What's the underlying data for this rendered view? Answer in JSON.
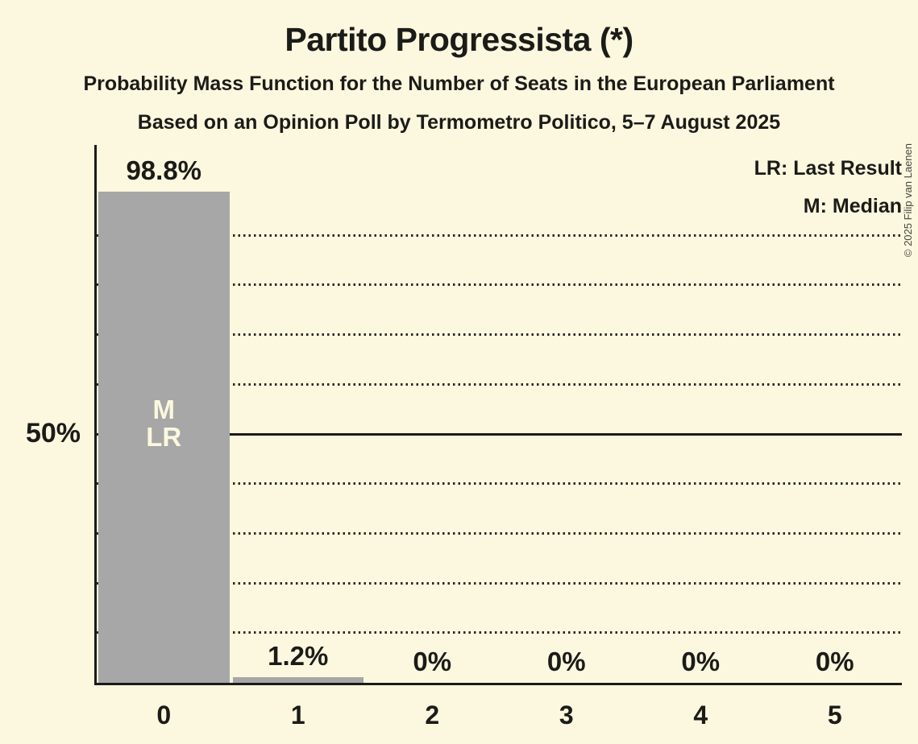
{
  "title": "Partito Progressista (*)",
  "subtitle": {
    "line1": "Probability Mass Function for the Number of Seats in the European Parliament",
    "line2": "Based on an Opinion Poll by Termometro Politico, 5–7 August 2025"
  },
  "legend": {
    "last_result": "LR: Last Result",
    "median": "M: Median"
  },
  "copyright": "© 2025 Filip van Laenen",
  "colors": {
    "background": "#FCF8DF",
    "bar": "#A7A7A7",
    "bar_annotation_text": "#FCF8DF",
    "text": "#1B1B18",
    "grid": "#2A2A24"
  },
  "chart_data": {
    "type": "bar",
    "title": "Partito Progressista (*)",
    "categories": [
      "0",
      "1",
      "2",
      "3",
      "4",
      "5"
    ],
    "values": [
      98.8,
      1.2,
      0,
      0,
      0,
      0
    ],
    "value_labels": [
      "98.8%",
      "1.2%",
      "0%",
      "0%",
      "0%",
      "0%"
    ],
    "bar_annotations": [
      [
        "M",
        "LR"
      ],
      [],
      [],
      [],
      [],
      []
    ],
    "xlabel": "",
    "ylabel": "",
    "ylim": [
      0,
      100
    ],
    "y_axis_label": "50%",
    "y_axis_label_value": 50,
    "gridlines_pct": [
      10,
      20,
      30,
      40,
      60,
      70,
      80,
      90
    ],
    "solid_line_pct": 50,
    "grid_style": "dotted-horizontal",
    "legend_position": "top-right"
  }
}
